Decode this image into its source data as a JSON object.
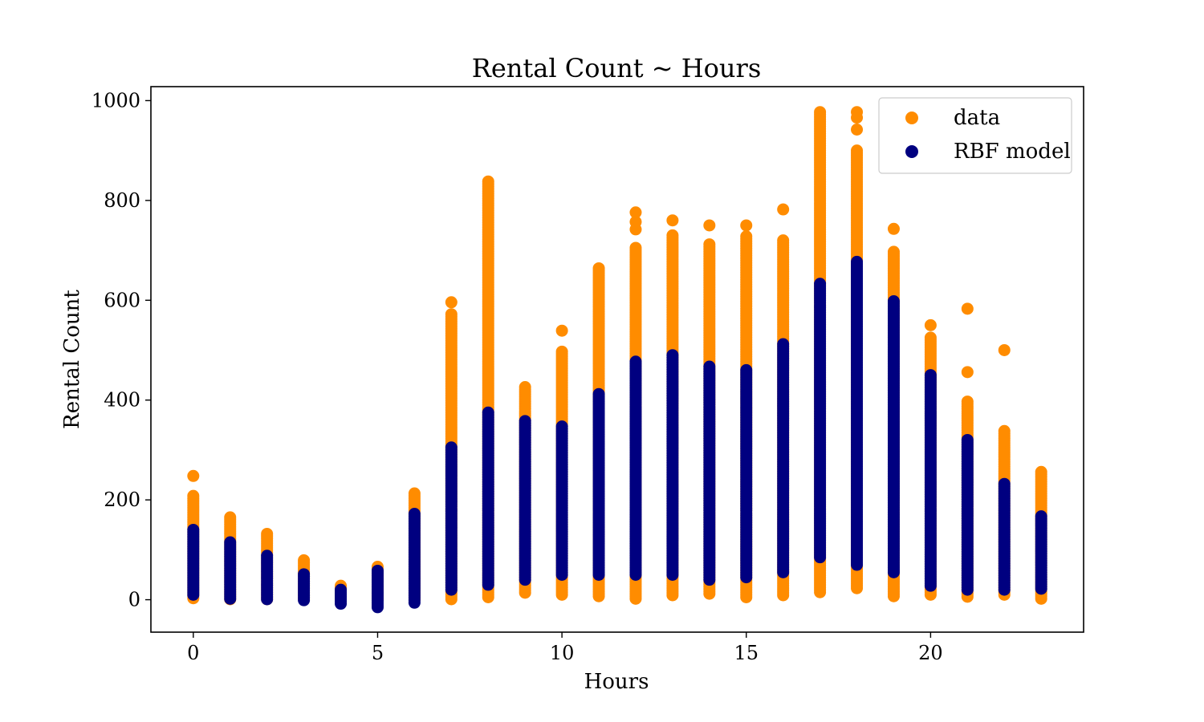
{
  "chart_data": {
    "type": "scatter",
    "title": "Rental Count ~ Hours",
    "xlabel": "Hours",
    "ylabel": "Rental Count",
    "xlim": [
      -1.15,
      24.15
    ],
    "ylim": [
      -65,
      1028
    ],
    "xticks": [
      0,
      5,
      10,
      15,
      20
    ],
    "yticks": [
      0,
      200,
      400,
      600,
      800,
      1000
    ],
    "legend_position": "top-right",
    "series": [
      {
        "name": "data",
        "color": "#ff8c00",
        "points": [
          {
            "hour": 0,
            "min": 3,
            "max": 208,
            "outliers": [
              248
            ]
          },
          {
            "hour": 1,
            "min": 1,
            "max": 165,
            "outliers": []
          },
          {
            "hour": 2,
            "min": 1,
            "max": 132,
            "outliers": []
          },
          {
            "hour": 3,
            "min": 1,
            "max": 79,
            "outliers": []
          },
          {
            "hour": 4,
            "min": 1,
            "max": 28,
            "outliers": []
          },
          {
            "hour": 5,
            "min": 1,
            "max": 66,
            "outliers": []
          },
          {
            "hour": 6,
            "min": 1,
            "max": 213,
            "outliers": []
          },
          {
            "hour": 7,
            "min": 1,
            "max": 572,
            "outliers": [
              596
            ]
          },
          {
            "hour": 8,
            "min": 5,
            "max": 838,
            "outliers": []
          },
          {
            "hour": 9,
            "min": 14,
            "max": 426,
            "outliers": []
          },
          {
            "hour": 10,
            "min": 10,
            "max": 497,
            "outliers": [
              539
            ]
          },
          {
            "hour": 11,
            "min": 7,
            "max": 664,
            "outliers": []
          },
          {
            "hour": 12,
            "min": 2,
            "max": 705,
            "outliers": [
              742,
              757,
              776
            ]
          },
          {
            "hour": 13,
            "min": 9,
            "max": 730,
            "outliers": [
              760
            ]
          },
          {
            "hour": 14,
            "min": 12,
            "max": 712,
            "outliers": [
              750
            ]
          },
          {
            "hour": 15,
            "min": 5,
            "max": 728,
            "outliers": [
              750
            ]
          },
          {
            "hour": 16,
            "min": 9,
            "max": 720,
            "outliers": [
              782
            ]
          },
          {
            "hour": 17,
            "min": 15,
            "max": 977,
            "outliers": []
          },
          {
            "hour": 18,
            "min": 23,
            "max": 900,
            "outliers": [
              942,
              966,
              977
            ]
          },
          {
            "hour": 19,
            "min": 7,
            "max": 697,
            "outliers": [
              743
            ]
          },
          {
            "hour": 20,
            "min": 10,
            "max": 525,
            "outliers": [
              550
            ]
          },
          {
            "hour": 21,
            "min": 6,
            "max": 397,
            "outliers": [
              456,
              583
            ]
          },
          {
            "hour": 22,
            "min": 10,
            "max": 338,
            "outliers": [
              500
            ]
          },
          {
            "hour": 23,
            "min": 2,
            "max": 256,
            "outliers": []
          }
        ]
      },
      {
        "name": "RBF model",
        "color": "#000080",
        "points": [
          {
            "hour": 0,
            "min": 10,
            "max": 140
          },
          {
            "hour": 1,
            "min": 2,
            "max": 115
          },
          {
            "hour": 2,
            "min": 1,
            "max": 88
          },
          {
            "hour": 3,
            "min": -1,
            "max": 51
          },
          {
            "hour": 4,
            "min": -8,
            "max": 20
          },
          {
            "hour": 5,
            "min": -15,
            "max": 58
          },
          {
            "hour": 6,
            "min": -6,
            "max": 172
          },
          {
            "hour": 7,
            "min": 20,
            "max": 305
          },
          {
            "hour": 8,
            "min": 30,
            "max": 375
          },
          {
            "hour": 9,
            "min": 40,
            "max": 358
          },
          {
            "hour": 10,
            "min": 50,
            "max": 347
          },
          {
            "hour": 11,
            "min": 50,
            "max": 412
          },
          {
            "hour": 12,
            "min": 50,
            "max": 477
          },
          {
            "hour": 13,
            "min": 50,
            "max": 490
          },
          {
            "hour": 14,
            "min": 40,
            "max": 467
          },
          {
            "hour": 15,
            "min": 45,
            "max": 460
          },
          {
            "hour": 16,
            "min": 55,
            "max": 512
          },
          {
            "hour": 17,
            "min": 85,
            "max": 633
          },
          {
            "hour": 18,
            "min": 70,
            "max": 677
          },
          {
            "hour": 19,
            "min": 55,
            "max": 598
          },
          {
            "hour": 20,
            "min": 28,
            "max": 450
          },
          {
            "hour": 21,
            "min": 20,
            "max": 320
          },
          {
            "hour": 22,
            "min": 20,
            "max": 232
          },
          {
            "hour": 23,
            "min": 22,
            "max": 167
          }
        ]
      }
    ]
  }
}
